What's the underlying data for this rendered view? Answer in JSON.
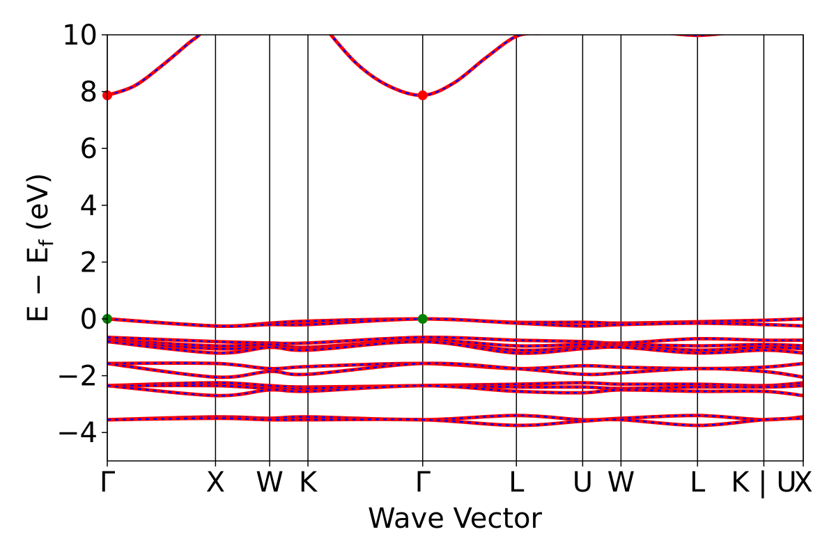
{
  "chart_data": {
    "type": "line",
    "xlabel": "Wave Vector",
    "ylabel_parts": {
      "main": "E − E",
      "sub": "f",
      "unit": " (eV)"
    },
    "ylim": [
      -5,
      10
    ],
    "yticks": [
      -4,
      -2,
      0,
      2,
      4,
      6,
      8,
      10
    ],
    "ytick_labels": [
      "−4",
      "−2",
      "0",
      "2",
      "4",
      "6",
      "8",
      "10"
    ],
    "grid": false,
    "xlim": [
      0,
      6.43
    ],
    "kpoints": [
      {
        "label": "Γ",
        "x": 0
      },
      {
        "label": "X",
        "x": 1.0
      },
      {
        "label": "W",
        "x": 1.5
      },
      {
        "label": "K",
        "x": 1.854
      },
      {
        "label": "Γ",
        "x": 2.914
      },
      {
        "label": "L",
        "x": 3.78
      },
      {
        "label": "U",
        "x": 4.392
      },
      {
        "label": "W",
        "x": 4.746
      },
      {
        "label": "L",
        "x": 5.453
      },
      {
        "label": "K | U",
        "x": 6.066
      },
      {
        "label": "X",
        "x": 6.43
      }
    ],
    "line_style": {
      "solid": "#ff0000",
      "dash": "#0000ff"
    },
    "series": [
      {
        "name": "",
        "x": [
          0,
          0.25,
          0.5,
          0.75,
          0.85,
          1.0
        ],
        "y": [
          7.87,
          8.2,
          8.9,
          9.7,
          10.0,
          10.6
        ]
      },
      {
        "name": "",
        "x": [
          2.0,
          2.3,
          2.6,
          2.914,
          3.2,
          3.5,
          3.78,
          4.0
        ],
        "y": [
          10.3,
          9.0,
          8.2,
          7.87,
          8.3,
          9.2,
          9.95,
          10.05
        ]
      },
      {
        "name": "",
        "x": [
          5.2,
          5.453,
          5.7
        ],
        "y": [
          10.05,
          9.98,
          10.05
        ]
      },
      {
        "name": "",
        "x": [
          0,
          1.0,
          1.5,
          1.854,
          2.914,
          3.78,
          4.392,
          4.746,
          5.453,
          6.066,
          6.43
        ],
        "y": [
          0,
          -0.25,
          -0.15,
          -0.08,
          0,
          -0.12,
          -0.12,
          -0.15,
          -0.1,
          -0.05,
          0
        ]
      },
      {
        "name": "",
        "x": [
          0,
          1.0,
          1.5,
          1.854,
          2.914,
          3.78,
          4.392,
          4.746,
          5.453,
          6.066,
          6.43
        ],
        "y": [
          0,
          -0.25,
          -0.2,
          -0.2,
          0,
          -0.15,
          -0.25,
          -0.2,
          -0.15,
          -0.2,
          -0.25
        ]
      },
      {
        "name": "",
        "x": [
          0,
          1.0,
          1.5,
          1.854,
          2.914,
          3.78,
          4.392,
          4.746,
          5.453,
          6.066,
          6.43
        ],
        "y": [
          -0.65,
          -0.8,
          -0.85,
          -0.85,
          -0.65,
          -0.75,
          -0.8,
          -0.85,
          -0.7,
          -0.75,
          -0.75
        ]
      },
      {
        "name": "",
        "x": [
          0,
          1.0,
          1.5,
          1.854,
          2.914,
          3.78,
          4.392,
          4.746,
          5.453,
          6.066,
          6.43
        ],
        "y": [
          -0.75,
          -0.95,
          -0.9,
          -1.0,
          -0.75,
          -0.95,
          -0.9,
          -0.9,
          -0.95,
          -0.9,
          -0.95
        ]
      },
      {
        "name": "",
        "x": [
          0,
          1.0,
          1.5,
          1.854,
          2.914,
          3.78,
          4.392,
          4.746,
          5.453,
          6.066,
          6.43
        ],
        "y": [
          -0.8,
          -1.05,
          -1.0,
          -1.05,
          -0.8,
          -1.1,
          -1.0,
          -0.95,
          -1.1,
          -1.0,
          -1.05
        ]
      },
      {
        "name": "",
        "x": [
          0,
          1.0,
          1.5,
          1.854,
          2.914,
          3.78,
          4.392,
          4.746,
          5.453,
          6.066,
          6.43
        ],
        "y": [
          -0.8,
          -1.2,
          -1.0,
          -1.1,
          -0.8,
          -1.2,
          -1.05,
          -1.0,
          -1.2,
          -1.1,
          -1.2
        ]
      },
      {
        "name": "",
        "x": [
          0,
          1.0,
          1.5,
          1.854,
          2.914,
          3.78,
          4.392,
          4.746,
          5.453,
          6.066,
          6.43
        ],
        "y": [
          -1.57,
          -1.57,
          -1.75,
          -1.68,
          -1.57,
          -1.75,
          -1.65,
          -1.7,
          -1.75,
          -1.7,
          -1.57
        ]
      },
      {
        "name": "",
        "x": [
          0,
          1.0,
          1.5,
          1.854,
          2.914,
          3.78,
          4.392,
          4.746,
          5.453,
          6.066,
          6.43
        ],
        "y": [
          -1.57,
          -2.05,
          -1.85,
          -1.95,
          -1.57,
          -1.75,
          -1.95,
          -1.9,
          -1.75,
          -1.85,
          -2.05
        ]
      },
      {
        "name": "",
        "x": [
          0,
          1.0,
          1.5,
          1.854,
          2.914,
          3.78,
          4.392,
          4.746,
          5.453,
          6.066,
          6.43
        ],
        "y": [
          -2.35,
          -2.25,
          -2.35,
          -2.4,
          -2.35,
          -2.3,
          -2.25,
          -2.3,
          -2.3,
          -2.35,
          -2.25
        ]
      },
      {
        "name": "",
        "x": [
          0,
          1.0,
          1.5,
          1.854,
          2.914,
          3.78,
          4.392,
          4.746,
          5.453,
          6.066,
          6.43
        ],
        "y": [
          -2.35,
          -2.35,
          -2.45,
          -2.45,
          -2.35,
          -2.4,
          -2.4,
          -2.45,
          -2.4,
          -2.4,
          -2.35
        ]
      },
      {
        "name": "",
        "x": [
          0,
          1.0,
          1.5,
          1.854,
          2.914,
          3.78,
          4.392,
          4.746,
          5.453,
          6.066,
          6.43
        ],
        "y": [
          -2.35,
          -2.7,
          -2.5,
          -2.55,
          -2.35,
          -2.55,
          -2.6,
          -2.5,
          -2.55,
          -2.55,
          -2.7
        ]
      },
      {
        "name": "",
        "x": [
          0,
          1.0,
          1.5,
          1.854,
          2.914,
          3.78,
          4.392,
          4.746,
          5.453,
          6.066,
          6.43
        ],
        "y": [
          -3.55,
          -3.45,
          -3.5,
          -3.45,
          -3.55,
          -3.4,
          -3.55,
          -3.5,
          -3.4,
          -3.55,
          -3.45
        ]
      },
      {
        "name": "",
        "x": [
          0,
          1.0,
          1.5,
          1.854,
          2.914,
          3.78,
          4.392,
          4.746,
          5.453,
          6.066,
          6.43
        ],
        "y": [
          -3.55,
          -3.5,
          -3.55,
          -3.55,
          -3.55,
          -3.75,
          -3.6,
          -3.55,
          -3.75,
          -3.55,
          -3.5
        ]
      }
    ],
    "markers": [
      {
        "x": 0,
        "y": 7.87,
        "color": "#ff0000"
      },
      {
        "x": 2.914,
        "y": 7.87,
        "color": "#ff0000"
      },
      {
        "x": 0,
        "y": 0,
        "color": "#008000"
      },
      {
        "x": 2.914,
        "y": 0,
        "color": "#008000"
      }
    ]
  }
}
